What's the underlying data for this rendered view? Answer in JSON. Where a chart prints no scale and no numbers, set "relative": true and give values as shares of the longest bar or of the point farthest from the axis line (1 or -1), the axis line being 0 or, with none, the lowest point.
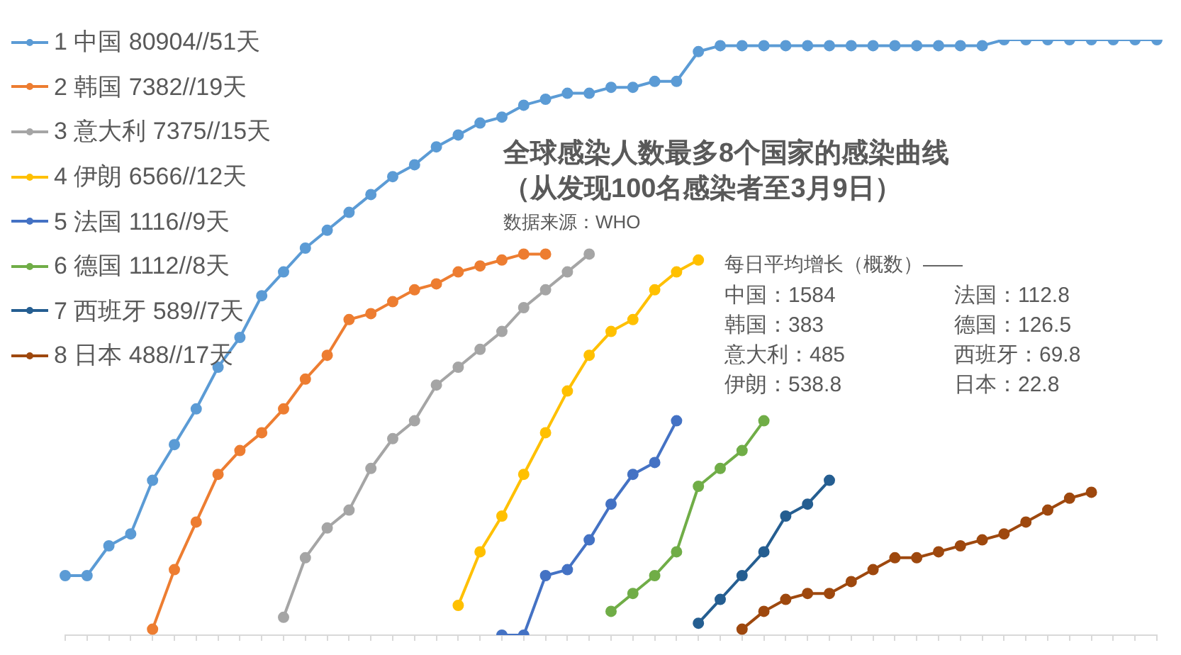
{
  "chart_data": {
    "type": "line",
    "relative": true,
    "title": "全球感染人数最多8个国家的感染曲线",
    "subtitle": "（从发现100名感染者至3月9日）",
    "legend": "top left",
    "marker": "circle",
    "annotations": [
      "数据来源：WHO",
      "每日平均增长（概数）——",
      "中国：1584",
      "韩国：383",
      "意大利：485",
      "伊朗：538.8",
      "法国：112.8",
      "德国：126.5",
      "西班牙：69.8",
      "日本：22.8"
    ],
    "categories": [
      null,
      null,
      null,
      null,
      null,
      null,
      null,
      null,
      null,
      null,
      null,
      null,
      null,
      null,
      null,
      null,
      null,
      null,
      null,
      null,
      null,
      null,
      null,
      null,
      null,
      null,
      null,
      null,
      null,
      null,
      null,
      null,
      null,
      null,
      null,
      null,
      null,
      null,
      null,
      null,
      null,
      null,
      null,
      null,
      null,
      null,
      null,
      null,
      null,
      null,
      null
    ],
    "series": [
      {
        "name": "1 中国 80904//51天",
        "color": "#5b9bd5",
        "values": [
          0.1,
          0.1,
          0.15,
          0.17,
          0.26,
          0.32,
          0.38,
          0.45,
          0.5,
          0.57,
          0.61,
          0.65,
          0.68,
          0.71,
          0.74,
          0.77,
          0.79,
          0.82,
          0.84,
          0.86,
          0.87,
          0.89,
          0.9,
          0.91,
          0.91,
          0.92,
          0.92,
          0.93,
          0.93,
          0.98,
          0.99,
          0.99,
          0.99,
          0.99,
          0.99,
          0.99,
          0.99,
          0.99,
          0.99,
          0.99,
          0.99,
          0.99,
          0.99,
          1.0,
          1.0,
          1.0,
          1.0,
          1.0,
          1.0,
          1.0,
          1.0
        ]
      },
      {
        "name": "2 韩国 7382//19天",
        "color": "#ed7d31",
        "values": [
          null,
          null,
          null,
          null,
          0.01,
          0.11,
          0.19,
          0.27,
          0.31,
          0.34,
          0.38,
          0.43,
          0.47,
          0.53,
          0.54,
          0.56,
          0.58,
          0.59,
          0.61,
          0.62,
          0.63,
          0.64,
          0.64,
          null,
          null,
          null,
          null,
          null,
          null,
          null,
          null,
          null,
          null,
          null,
          null,
          null,
          null,
          null,
          null,
          null,
          null,
          null,
          null,
          null,
          null,
          null,
          null,
          null,
          null,
          null,
          null
        ]
      },
      {
        "name": "3 意大利 7375//15天",
        "color": "#a5a5a5",
        "values": [
          null,
          null,
          null,
          null,
          null,
          null,
          null,
          null,
          null,
          null,
          0.03,
          0.13,
          0.18,
          0.21,
          0.28,
          0.33,
          0.36,
          0.42,
          0.45,
          0.48,
          0.51,
          0.55,
          0.58,
          0.61,
          0.64,
          null,
          null,
          null,
          null,
          null,
          null,
          null,
          null,
          null,
          null,
          null,
          null,
          null,
          null,
          null,
          null,
          null,
          null,
          null,
          null,
          null,
          null,
          null,
          null,
          null,
          null
        ]
      },
      {
        "name": "4 伊朗 6566//12天",
        "color": "#ffc000",
        "values": [
          null,
          null,
          null,
          null,
          null,
          null,
          null,
          null,
          null,
          null,
          null,
          null,
          null,
          null,
          null,
          null,
          null,
          null,
          0.05,
          0.14,
          0.2,
          0.27,
          0.34,
          0.41,
          0.47,
          0.51,
          0.53,
          0.58,
          0.61,
          0.63,
          null,
          null,
          null,
          null,
          null,
          null,
          null,
          null,
          null,
          null,
          null,
          null,
          null,
          null,
          null,
          null,
          null,
          null,
          null,
          null,
          null
        ]
      },
      {
        "name": "5 法国 1116//9天",
        "color": "#4472c4",
        "values": [
          null,
          null,
          null,
          null,
          null,
          null,
          null,
          null,
          null,
          null,
          null,
          null,
          null,
          null,
          null,
          null,
          null,
          null,
          null,
          null,
          0,
          0,
          0.1,
          0.11,
          0.16,
          0.22,
          0.27,
          0.29,
          0.36,
          null,
          null,
          null,
          null,
          null,
          null,
          null,
          null,
          null,
          null,
          null,
          null,
          null,
          null,
          null,
          null,
          null,
          null,
          null,
          null,
          null,
          null
        ]
      },
      {
        "name": "6 德国 1112//8天",
        "color": "#70ad47",
        "values": [
          null,
          null,
          null,
          null,
          null,
          null,
          null,
          null,
          null,
          null,
          null,
          null,
          null,
          null,
          null,
          null,
          null,
          null,
          null,
          null,
          null,
          null,
          null,
          null,
          null,
          0.04,
          0.07,
          0.1,
          0.14,
          0.25,
          0.28,
          0.31,
          0.36,
          null,
          null,
          null,
          null,
          null,
          null,
          null,
          null,
          null,
          null,
          null,
          null,
          null,
          null,
          null,
          null,
          null,
          null
        ]
      },
      {
        "name": "7 西班牙 589//7天",
        "color": "#255e91",
        "values": [
          null,
          null,
          null,
          null,
          null,
          null,
          null,
          null,
          null,
          null,
          null,
          null,
          null,
          null,
          null,
          null,
          null,
          null,
          null,
          null,
          null,
          null,
          null,
          null,
          null,
          null,
          null,
          null,
          null,
          0.02,
          0.06,
          0.1,
          0.14,
          0.2,
          0.22,
          0.26,
          null,
          null,
          null,
          null,
          null,
          null,
          null,
          null,
          null,
          null,
          null,
          null,
          null,
          null,
          null
        ]
      },
      {
        "name": "8 日本 488//17天",
        "color": "#9e480e",
        "values": [
          null,
          null,
          null,
          null,
          null,
          null,
          null,
          null,
          null,
          null,
          null,
          null,
          null,
          null,
          null,
          null,
          null,
          null,
          null,
          null,
          null,
          null,
          null,
          null,
          null,
          null,
          null,
          null,
          null,
          null,
          null,
          0.01,
          0.04,
          0.06,
          0.07,
          0.07,
          0.09,
          0.11,
          0.13,
          0.13,
          0.14,
          0.15,
          0.16,
          0.17,
          0.19,
          0.21,
          0.23,
          0.24,
          null,
          null,
          null
        ]
      }
    ]
  }
}
